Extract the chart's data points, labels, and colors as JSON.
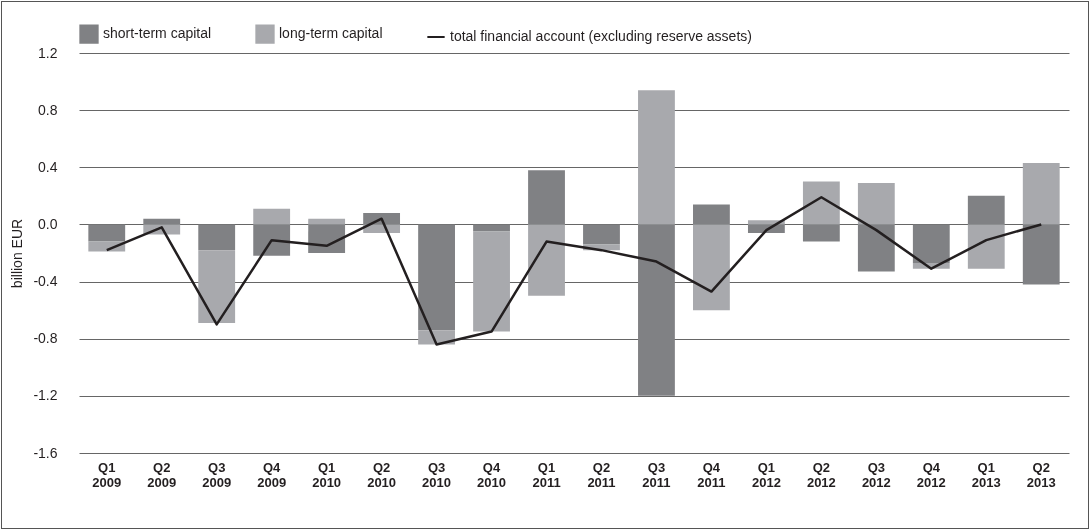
{
  "chart_data": {
    "type": "bar",
    "stacked": true,
    "ylabel": "billion EUR",
    "categories": [
      "Q1 2009",
      "Q2 2009",
      "Q3 2009",
      "Q4 2009",
      "Q1 2010",
      "Q2 2010",
      "Q3 2010",
      "Q4 2010",
      "Q1 2011",
      "Q2 2011",
      "Q3 2011",
      "Q4 2011",
      "Q1 2012",
      "Q2 2012",
      "Q3 2012",
      "Q4 2012",
      "Q1 2013",
      "Q2 2013"
    ],
    "series": [
      {
        "name": "short-term capital",
        "color": "#808184",
        "values": [
          -0.12,
          0.04,
          -0.18,
          -0.22,
          -0.2,
          0.08,
          -0.74,
          -0.05,
          0.38,
          -0.14,
          -1.2,
          0.14,
          -0.06,
          -0.12,
          -0.33,
          -0.27,
          0.2,
          -0.42
        ]
      },
      {
        "name": "long-term capital",
        "color": "#a8a9ad",
        "values": [
          -0.07,
          -0.07,
          -0.51,
          0.11,
          0.04,
          -0.06,
          -0.1,
          -0.7,
          -0.5,
          -0.04,
          0.94,
          -0.6,
          0.03,
          0.3,
          0.29,
          -0.04,
          -0.31,
          0.43
        ]
      },
      {
        "name": "total financial account (excluding reserve assets)",
        "type": "line",
        "color": "#231f20",
        "values": [
          -0.18,
          -0.02,
          -0.7,
          -0.11,
          -0.15,
          0.04,
          -0.84,
          -0.75,
          -0.12,
          -0.18,
          -0.26,
          -0.47,
          -0.04,
          0.19,
          -0.04,
          -0.31,
          -0.11,
          0.0
        ]
      }
    ],
    "ylim": [
      -1.6,
      1.2
    ],
    "yticks": [
      {
        "value": -1.6,
        "label": "-1.6"
      },
      {
        "value": -1.2,
        "label": "-1.2"
      },
      {
        "value": -0.8,
        "label": "-0.8"
      },
      {
        "value": -0.4,
        "label": "-0.4"
      },
      {
        "value": 0,
        "label": "0.0"
      },
      {
        "value": 0.4,
        "label": "0.4"
      },
      {
        "value": 0.8,
        "label": "0.8"
      },
      {
        "value": 1.2,
        "label": "1.2"
      }
    ],
    "grid": "y",
    "legend": "top"
  }
}
